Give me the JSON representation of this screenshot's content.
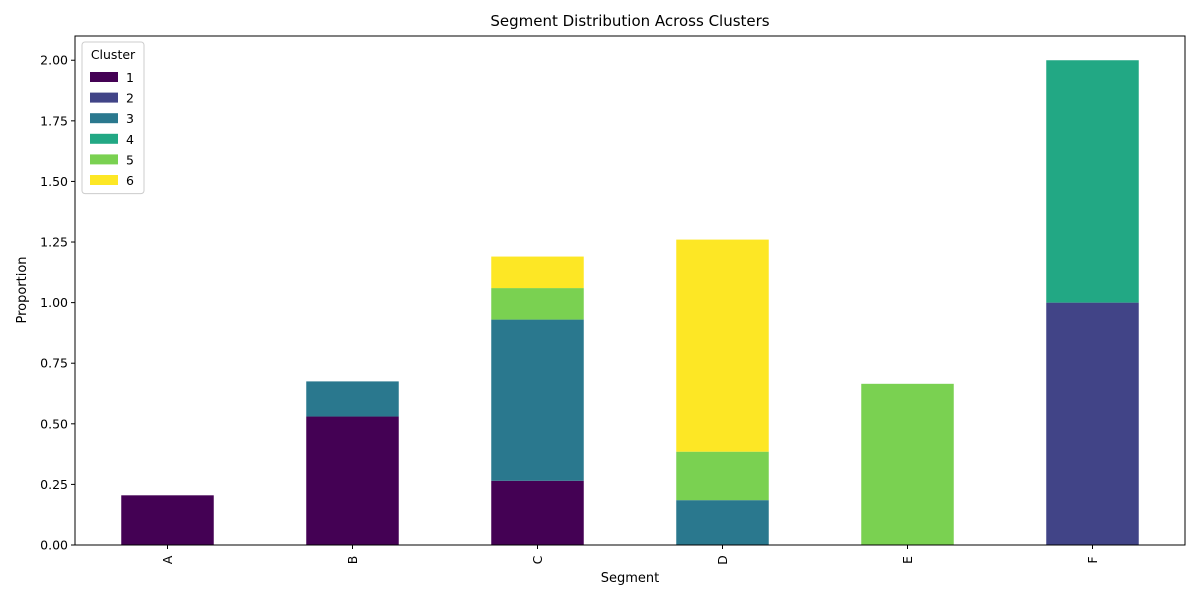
{
  "chart_data": {
    "type": "bar",
    "stacked": true,
    "title": "Segment Distribution Across Clusters",
    "xlabel": "Segment",
    "ylabel": "Proportion",
    "categories": [
      "A",
      "B",
      "C",
      "D",
      "E",
      "F"
    ],
    "ylim": [
      0,
      2.1
    ],
    "yticks": [
      "0.00",
      "0.25",
      "0.50",
      "0.75",
      "1.00",
      "1.25",
      "1.50",
      "1.75",
      "2.00"
    ],
    "legend_title": "Cluster",
    "legend_position": "top-left",
    "grid": false,
    "series": [
      {
        "name": "1",
        "color": "#440154",
        "values": [
          0.205,
          0.53,
          0.265,
          0,
          0,
          0
        ]
      },
      {
        "name": "2",
        "color": "#414487",
        "values": [
          0,
          0,
          0,
          0,
          0,
          1.0
        ]
      },
      {
        "name": "3",
        "color": "#2a788e",
        "values": [
          0,
          0.145,
          0.665,
          0.185,
          0,
          0
        ]
      },
      {
        "name": "4",
        "color": "#22a884",
        "values": [
          0,
          0,
          0,
          0,
          0,
          1.0
        ]
      },
      {
        "name": "5",
        "color": "#7ad151",
        "values": [
          0,
          0,
          0.13,
          0.2,
          0.665,
          0
        ]
      },
      {
        "name": "6",
        "color": "#fde725",
        "values": [
          0,
          0,
          0.13,
          0.875,
          0,
          0
        ]
      }
    ]
  }
}
